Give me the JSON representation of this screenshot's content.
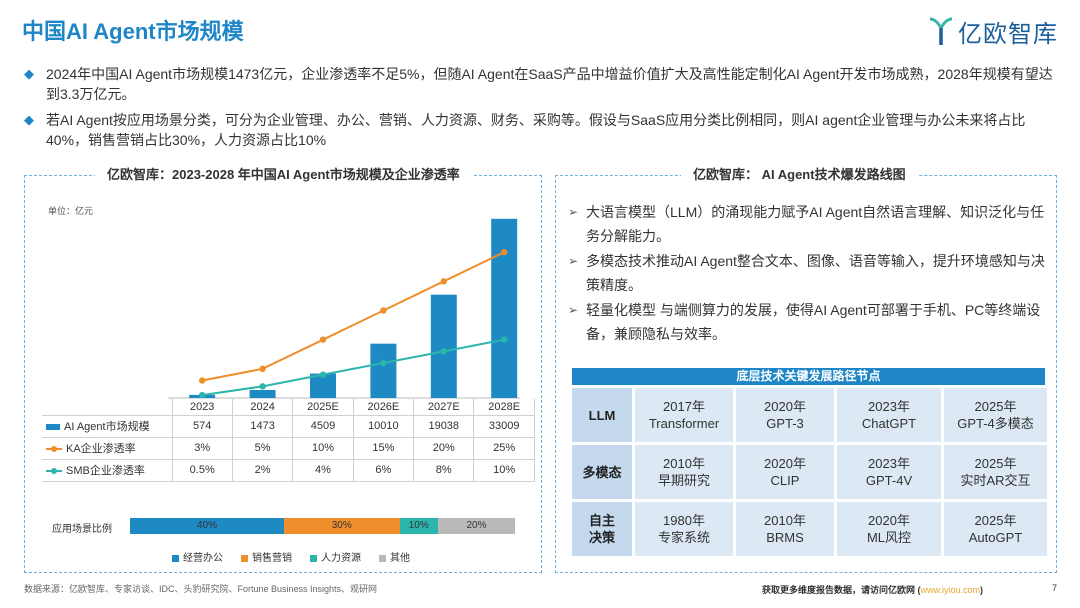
{
  "title": "中国AI Agent市场规模",
  "logo_text": "亿欧智库",
  "bullets": [
    "2024年中国AI Agent市场规模1473亿元，企业渗透率不足5%，但随AI Agent在SaaS产品中增益价值扩大及高性能定制化AI Agent开发市场成熟，2028年规模有望达到3.3万亿元。",
    "若AI Agent按应用场景分类，可分为企业管理、办公、营销、人力资源、财务、采购等。假设与SaaS应用分类比例相同，则AI agent企业管理与办公未来将占比40%，销售营销占比30%，人力资源占比10%"
  ],
  "left_panel_title": "亿欧智库：2023-2028 年中国AI Agent市场规模及企业渗透率",
  "right_panel_title": "亿欧智库： AI Agent技术爆发路线图",
  "unit_label": "单位：亿元",
  "chart_data": {
    "type": "bar",
    "categories": [
      "2023",
      "2024",
      "2025E",
      "2026E",
      "2027E",
      "2028E"
    ],
    "series": [
      {
        "name": "AI Agent市场规模",
        "type": "bar",
        "values": [
          574,
          1473,
          4509,
          10010,
          19038,
          33009
        ],
        "labels": [
          "574",
          "1473",
          "4509",
          "10010",
          "19038",
          "33009"
        ],
        "color": "#1e8ac4"
      },
      {
        "name": "KA企业渗透率",
        "type": "line",
        "values": [
          3,
          5,
          10,
          15,
          20,
          25
        ],
        "labels": [
          "3%",
          "5%",
          "10%",
          "15%",
          "20%",
          "25%"
        ],
        "color": "#ef8f2c"
      },
      {
        "name": "SMB企业渗透率",
        "type": "line",
        "values": [
          0.5,
          2,
          4,
          6,
          8,
          10
        ],
        "labels": [
          "0.5%",
          "2%",
          "4%",
          "6%",
          "8%",
          "10%"
        ],
        "color": "#2cb5ac"
      }
    ],
    "ylim": [
      0,
      35000
    ],
    "y2lim": [
      0,
      30
    ],
    "scenario_label": "应用场景比例",
    "scenario_shares": [
      {
        "name": "经营办公",
        "value": 40,
        "label": "40%",
        "color": "#1e8ac4"
      },
      {
        "name": "销售营销",
        "value": 30,
        "label": "30%",
        "color": "#ef8f2c"
      },
      {
        "name": "人力资源",
        "value": 10,
        "label": "10%",
        "color": "#2cb5ac"
      },
      {
        "name": "其他",
        "value": 20,
        "label": "20%",
        "color": "#b9b9b9"
      }
    ]
  },
  "right_bullets": [
    "大语言模型（LLM）的涌现能力赋予AI Agent自然语言理解、知识泛化与任务分解能力。",
    "多模态技术推动AI Agent整合文本、图像、语音等输入，提升环境感知与决策精度。",
    "轻量化模型 与端侧算力的发展，使得AI Agent可部署于手机、PC等终端设备，兼顾隐私与效率。"
  ],
  "nodes_title": "底层技术关键发展路径节点",
  "nodes": [
    {
      "row_label": [
        "LLM"
      ],
      "cells": [
        [
          "2017年",
          "Transformer"
        ],
        [
          "2020年",
          "GPT-3"
        ],
        [
          "2023年",
          "ChatGPT"
        ],
        [
          "2025年",
          "GPT-4多模态"
        ]
      ]
    },
    {
      "row_label": [
        "多模态"
      ],
      "cells": [
        [
          "2010年",
          "早期研究"
        ],
        [
          "2020年",
          "CLIP"
        ],
        [
          "2023年",
          "GPT-4V"
        ],
        [
          "2025年",
          "实时AR交互"
        ]
      ]
    },
    {
      "row_label": [
        "自主",
        "决策"
      ],
      "cells": [
        [
          "1980年",
          "专家系统"
        ],
        [
          "2010年",
          "BRMS"
        ],
        [
          "2020年",
          "ML风控"
        ],
        [
          "2025年",
          "AutoGPT"
        ]
      ]
    }
  ],
  "footer_source": "数据来源：亿欧智库、专家访谈、IDC、头豹研究院、Fortune Business Insights、观研网",
  "footer_more": "获取更多维度报告数据，请访问亿欧网 (",
  "footer_link": "www.iyiou.com",
  "footer_close": ")",
  "page_number": "7"
}
